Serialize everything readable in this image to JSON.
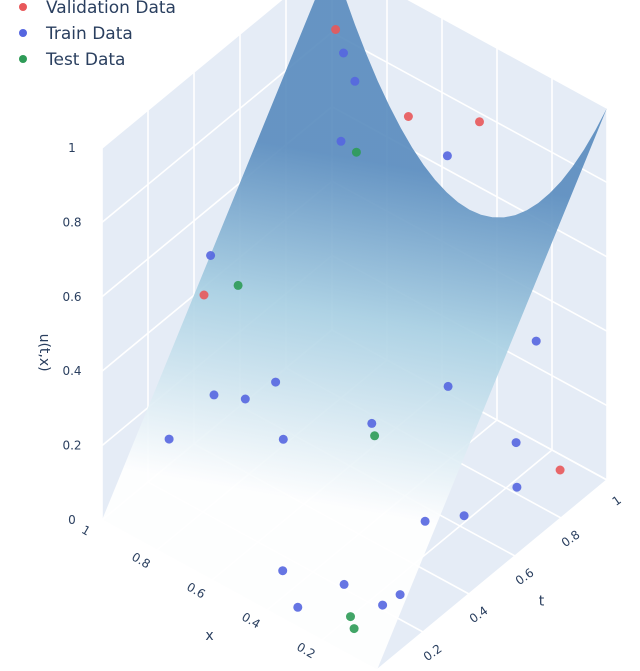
{
  "chart_data": {
    "type": "scatter3d_surface",
    "surface": {
      "colors": [
        "#ffffff",
        "#a9d0e3",
        "#5b8dbf"
      ]
    },
    "axes": {
      "x": {
        "title": "x",
        "range": [
          0,
          1
        ],
        "ticks": [
          "0.2",
          "0.4",
          "0.6",
          "0.8",
          "1"
        ]
      },
      "t": {
        "title": "t",
        "range": [
          0,
          1
        ],
        "ticks": [
          "0.2",
          "0.4",
          "0.6",
          "0.8",
          "1"
        ]
      },
      "u": {
        "title": "u(t,x)",
        "range": [
          0,
          1
        ],
        "ticks": [
          "0",
          "0.2",
          "0.4",
          "0.6",
          "0.8",
          "1"
        ]
      }
    },
    "legend": {
      "position": "top-left"
    },
    "series": [
      {
        "name": "Validation Data",
        "color": "#e8585a",
        "points": [
          [
            0.88,
            0.07,
            0.06
          ],
          [
            0.96,
            0.43,
            0.81
          ],
          [
            0.83,
            0.58,
            0.83
          ],
          [
            0.98,
            0.97,
            0.83
          ],
          [
            0.3,
            0.88,
            0.5
          ]
        ]
      },
      {
        "name": "Train Data",
        "color": "#5566e0",
        "points": [
          [
            0.12,
            0.22,
            0.08
          ],
          [
            0.74,
            0.04,
            0.49
          ],
          [
            0.68,
            0.06,
            0.12
          ],
          [
            0.82,
            0.43,
            0.79
          ],
          [
            0.51,
            0.11,
            0.11
          ],
          [
            0.82,
            0.18,
            0.12
          ],
          [
            0.68,
            0.31,
            0.29
          ],
          [
            0.46,
            0.21,
            0.08
          ],
          [
            0.14,
            0.46,
            0.01
          ],
          [
            0.92,
            0.85,
            0.77
          ],
          [
            0.8,
            0.8,
            0.69
          ],
          [
            0.99,
            0.95,
            0.77
          ],
          [
            0.36,
            0.32,
            0.35
          ],
          [
            0.36,
            0.67,
            0.32
          ],
          [
            0.31,
            0.6,
            0.22
          ],
          [
            0.16,
            0.89,
            0.18
          ],
          [
            0.36,
            0.78,
            0.23
          ],
          [
            0.26,
            0.81,
            0.28
          ],
          [
            0.22,
            0.1,
            0.05
          ],
          [
            0.18,
            0.13,
            0.03
          ],
          [
            0.05,
            0.33,
            0.01
          ],
          [
            0.46,
            0.99,
            0.48
          ]
        ]
      },
      {
        "name": "Test Data",
        "color": "#2e9b57",
        "points": [
          [
            0.58,
            0.56,
            0.87
          ],
          [
            0.46,
            0.89,
            0.44
          ],
          [
            0.42,
            0.36,
            0.27
          ],
          [
            0.08,
            0.15,
            0.01
          ],
          [
            0.1,
            0.18,
            0.02
          ]
        ]
      }
    ]
  }
}
